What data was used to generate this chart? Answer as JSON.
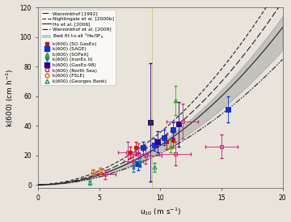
{
  "xlabel": "u$_{10}$ (m s$^{-1}$)",
  "ylabel": "k(600) (cm h$^{-1}$)",
  "xlim": [
    0,
    20
  ],
  "ylim": [
    -2,
    120
  ],
  "xticks": [
    0,
    5,
    10,
    15,
    20
  ],
  "yticks": [
    0,
    20,
    40,
    60,
    80,
    100,
    120
  ],
  "vertical_line_x": 9.3,
  "bg_color": "#e8e4dc",
  "curves": {
    "wanninkhof1992": {
      "a": 0.0,
      "b": 0.0,
      "c": 0.31,
      "style": "long_dash",
      "label": "Wanninkhof [1992]"
    },
    "nightingale2000": {
      "a": 0.0,
      "b": 0.222,
      "c": 0.333,
      "style": "dash",
      "label": "Nightingale et al. [2000b]"
    },
    "ho2006": {
      "a": 0.0,
      "b": 0.0,
      "c": 0.266,
      "style": "solid",
      "label": "Ho et al. [2006]"
    },
    "wanninkhof2009": {
      "a": 0.0,
      "b": 0.0,
      "c": 0.212,
      "style": "dashdotdot",
      "label": "Wanninkhof et al. [2009]"
    }
  },
  "best_fit_low": 0.228,
  "best_fit_high": 0.285,
  "so_gasex": {
    "x": [
      7.5,
      8.0,
      10.5,
      11.0
    ],
    "y": [
      22,
      25,
      29,
      30
    ],
    "xerr": [
      0,
      0,
      0,
      0
    ],
    "yerr": [
      4,
      4,
      5,
      5
    ],
    "color": "#cc1111",
    "marker": "s",
    "filled": true,
    "ms": 3.5,
    "label": "k(600) (SO GasEx)"
  },
  "sage": {
    "x": [
      8.2,
      8.6,
      9.5,
      10.3,
      11.0,
      15.5
    ],
    "y": [
      14,
      25,
      27,
      32,
      37,
      51
    ],
    "xerr": [
      0,
      0,
      0,
      0,
      0,
      0
    ],
    "yerr": [
      4,
      4,
      4,
      5,
      5,
      9
    ],
    "color": "#1133cc",
    "marker": "s",
    "filled": true,
    "ms": 4.5,
    "label": "k(600) (SAGE)"
  },
  "sofex": {
    "x": [
      10.8,
      11.2
    ],
    "y": [
      26,
      57
    ],
    "xerr": [
      0,
      0
    ],
    "yerr": [
      4,
      10
    ],
    "color": "#44aa11",
    "marker": "^",
    "filled": true,
    "ms": 3.5,
    "label": "k(600) (SOFeX)"
  },
  "ironex": {
    "x": [
      7.8,
      8.3
    ],
    "y": [
      12,
      15
    ],
    "xerr": [
      0,
      0
    ],
    "yerr": [
      3,
      3
    ],
    "color": "#008899",
    "marker": "v",
    "filled": true,
    "ms": 3.5,
    "label": "k(600) (IronEx II)"
  },
  "gasex98": {
    "x": [
      9.2,
      11.5,
      9.8
    ],
    "y": [
      42,
      41,
      29
    ],
    "xerr": [
      0,
      0,
      0
    ],
    "yerr": [
      40,
      15,
      7
    ],
    "color": "#330088",
    "marker": "s",
    "filled": true,
    "ms": 4.5,
    "label": "k(600) (GasEx-98)"
  },
  "north_sea": {
    "x": [
      5.5,
      7.3,
      7.8,
      8.2,
      8.8,
      11.2,
      11.8,
      15.0
    ],
    "y": [
      7,
      22,
      16,
      21,
      20,
      21,
      43,
      26
    ],
    "xerr": [
      0.8,
      0.8,
      0.8,
      0.8,
      1.3,
      1.3,
      1.3,
      1.3
    ],
    "yerr": [
      3,
      7,
      5,
      7,
      6,
      8,
      12,
      8
    ],
    "color": "#cc2277",
    "marker": "s",
    "filled": false,
    "ms": 3.5,
    "label": "k(600) (North Sea)"
  },
  "fsle": {
    "x": [
      4.5,
      5.1
    ],
    "y": [
      8.5,
      9.5
    ],
    "xerr": [
      0,
      0
    ],
    "yerr": [
      2,
      2
    ],
    "color": "#dd6600",
    "marker": "o",
    "filled": false,
    "ms": 3.5,
    "label": "k(600) (FSLE)"
  },
  "georges_bank": {
    "x": [
      4.2,
      9.5
    ],
    "y": [
      1.5,
      12.0
    ],
    "xerr": [
      0,
      0
    ],
    "yerr": [
      1.5,
      3
    ],
    "color": "#119955",
    "marker": "^",
    "filled": false,
    "ms": 3.5,
    "label": "k(600) (Georges Bank)"
  },
  "gasex98_star_x": 9.2,
  "gasex98_star_y": 42
}
